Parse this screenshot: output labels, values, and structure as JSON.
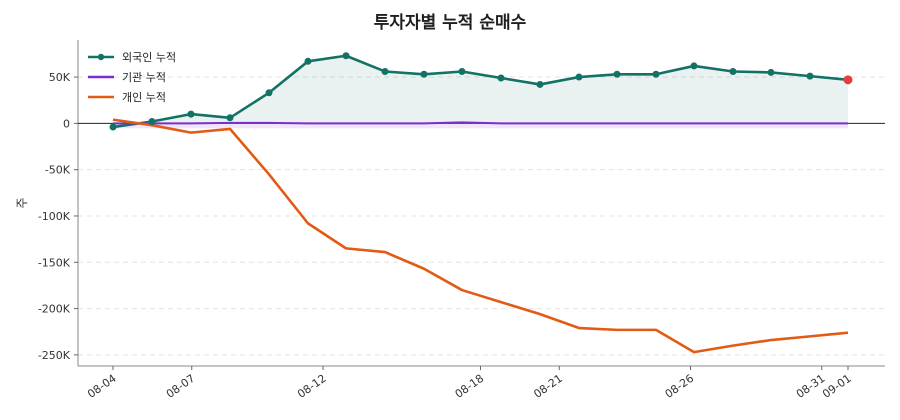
{
  "chart_data": {
    "type": "line",
    "title": "투자자별 누적 순매수",
    "ylabel": "주",
    "xlabel": "",
    "ylim": [
      -262000,
      90000
    ],
    "yticks": [
      50000,
      0,
      -50000,
      -100000,
      -150000,
      -200000,
      -250000
    ],
    "ytick_labels": [
      "50K",
      "0",
      "-50K",
      "-100K",
      "-150K",
      "-200K",
      "-250K"
    ],
    "x_tick_labels": [
      "08-04",
      "08-07",
      "08-12",
      "08-18",
      "08-21",
      "08-26",
      "08-31",
      "09-01"
    ],
    "x_tick_days": [
      0,
      3,
      8,
      14,
      17,
      22,
      27,
      28
    ],
    "x_days": [
      0,
      1,
      2,
      3,
      4,
      5,
      6,
      7,
      8,
      9,
      10,
      11,
      12,
      13,
      14,
      15,
      16,
      17,
      18,
      19,
      20,
      21,
      22
    ],
    "series": [
      {
        "name": "외국인 누적",
        "color": "#137266",
        "values": [
          -4000,
          2000,
          10000,
          6000,
          33000,
          67000,
          73000,
          56000,
          53000,
          56000,
          49000,
          42000,
          50000,
          53000,
          53000,
          62000,
          56000,
          55000,
          51000,
          47000,
          null,
          null,
          null
        ]
      },
      {
        "name": "기관 누적",
        "color": "#7b2fd0",
        "values": [
          0,
          0,
          0,
          500,
          500,
          0,
          0,
          0,
          0,
          1000,
          0,
          0,
          0,
          0,
          0,
          0,
          0,
          0,
          0,
          0,
          null,
          null,
          null
        ]
      },
      {
        "name": "개인 누적",
        "color": "#e35a14",
        "values": [
          4000,
          -2000,
          -10000,
          -6000,
          -55000,
          -108000,
          -135000,
          -139000,
          -157000,
          -180000,
          -193000,
          -206000,
          -221000,
          -223000,
          -223000,
          -247000,
          -240000,
          -234000,
          -230000,
          -226000,
          null,
          null,
          null
        ]
      }
    ],
    "grid": "horizontal-dashed",
    "legend_position": "top-left",
    "last_point_marker_color": "#e04040"
  }
}
